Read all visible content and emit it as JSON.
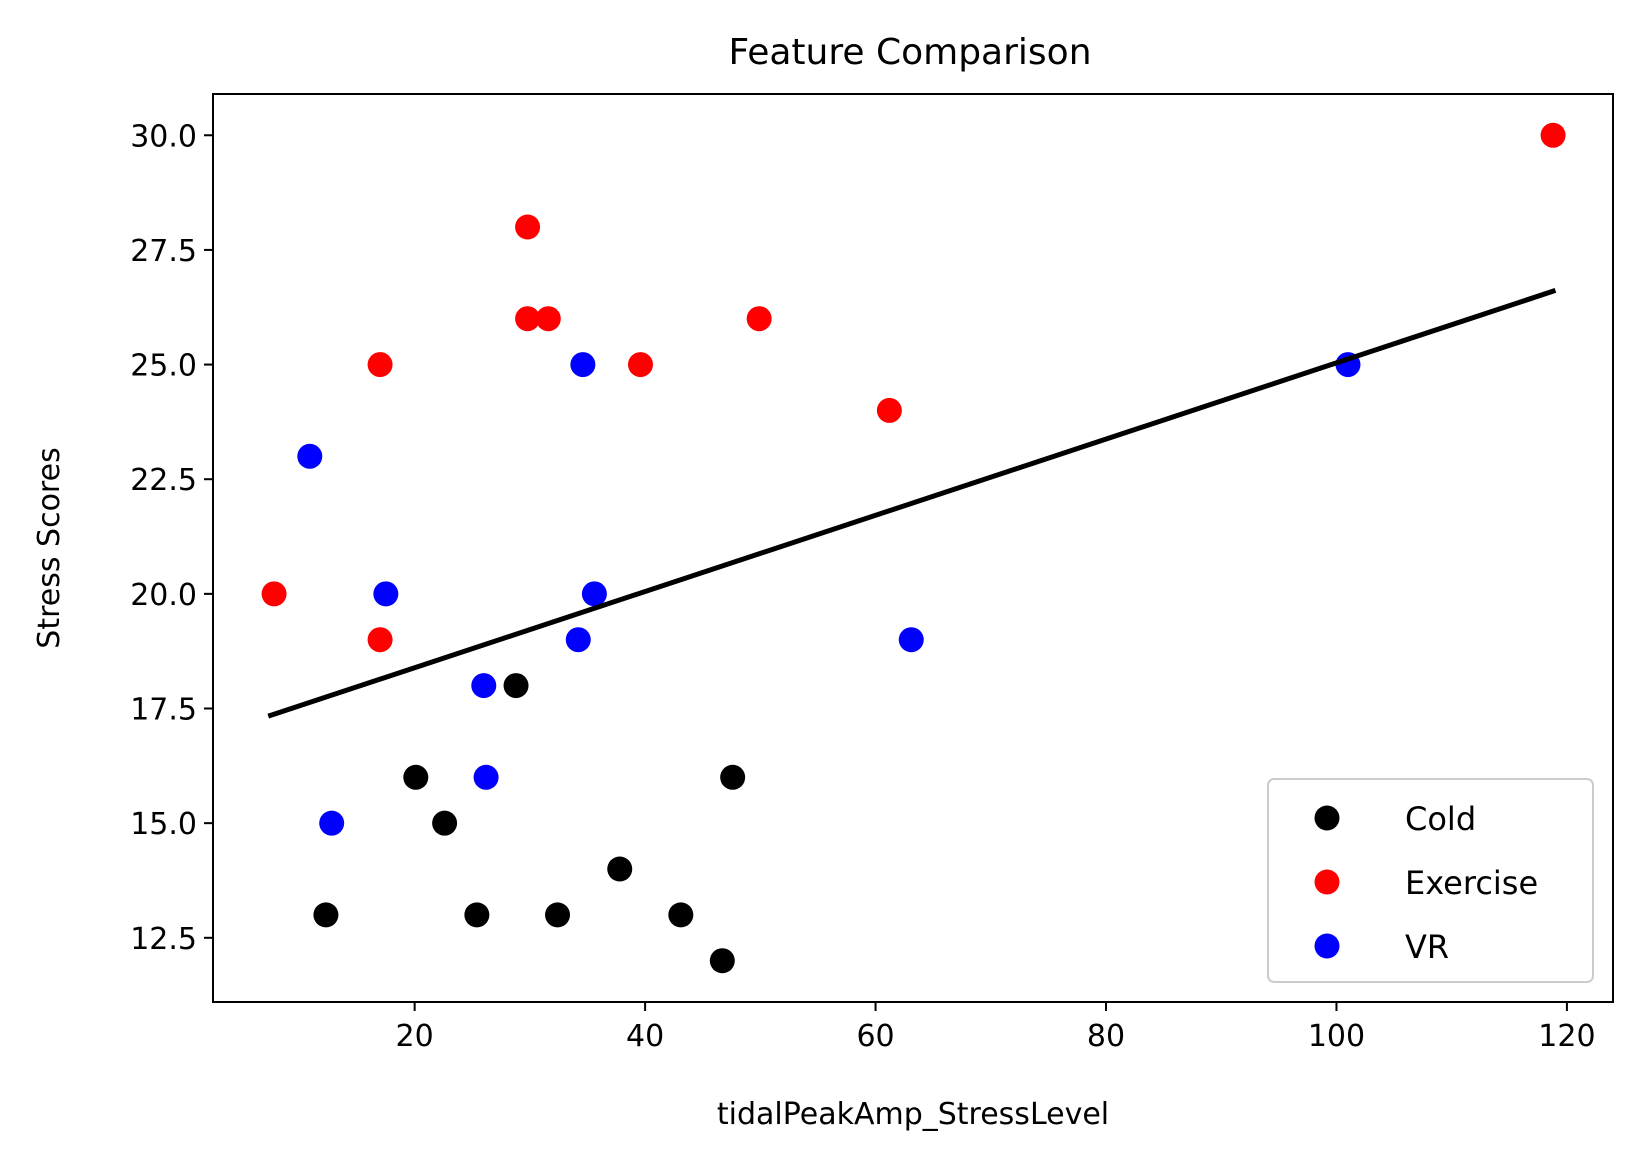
{
  "chart_data": {
    "type": "scatter",
    "title": "Feature Comparison",
    "xlabel": "tidalPeakAmp_StressLevel",
    "ylabel": "Stress Scores",
    "xlim": [
      2.5,
      124
    ],
    "ylim": [
      11.1,
      30.9
    ],
    "xticks": [
      20,
      40,
      60,
      80,
      100,
      120
    ],
    "yticks": [
      12.5,
      15.0,
      17.5,
      20.0,
      22.5,
      25.0,
      27.5,
      30.0
    ],
    "xtick_labels": [
      "20",
      "40",
      "60",
      "80",
      "100",
      "120"
    ],
    "ytick_labels": [
      "12.5",
      "15.0",
      "17.5",
      "20.0",
      "22.5",
      "25.0",
      "27.5",
      "30.0"
    ],
    "legend_position": "lower-right",
    "grid": false,
    "series": [
      {
        "name": "Cold",
        "color": "#000000",
        "points": [
          {
            "x": 12.3,
            "y": 13
          },
          {
            "x": 20.1,
            "y": 16
          },
          {
            "x": 22.6,
            "y": 15
          },
          {
            "x": 25.4,
            "y": 13
          },
          {
            "x": 28.8,
            "y": 18
          },
          {
            "x": 32.4,
            "y": 13
          },
          {
            "x": 37.8,
            "y": 14
          },
          {
            "x": 43.1,
            "y": 13
          },
          {
            "x": 46.7,
            "y": 12
          },
          {
            "x": 47.6,
            "y": 16
          }
        ]
      },
      {
        "name": "Exercise",
        "color": "#ff0000",
        "points": [
          {
            "x": 7.8,
            "y": 20
          },
          {
            "x": 17.0,
            "y": 25
          },
          {
            "x": 17.0,
            "y": 19
          },
          {
            "x": 29.8,
            "y": 28
          },
          {
            "x": 29.8,
            "y": 26
          },
          {
            "x": 31.6,
            "y": 26
          },
          {
            "x": 39.6,
            "y": 25
          },
          {
            "x": 49.9,
            "y": 26
          },
          {
            "x": 61.2,
            "y": 24
          },
          {
            "x": 118.8,
            "y": 30
          }
        ]
      },
      {
        "name": "VR",
        "color": "#0000ff",
        "points": [
          {
            "x": 10.9,
            "y": 23
          },
          {
            "x": 12.8,
            "y": 15
          },
          {
            "x": 17.5,
            "y": 20
          },
          {
            "x": 26.0,
            "y": 18
          },
          {
            "x": 26.2,
            "y": 16
          },
          {
            "x": 34.2,
            "y": 19
          },
          {
            "x": 34.6,
            "y": 25
          },
          {
            "x": 35.6,
            "y": 20
          },
          {
            "x": 63.1,
            "y": 19
          },
          {
            "x": 101.0,
            "y": 25
          }
        ]
      }
    ],
    "fit_line": {
      "color": "#000000",
      "x": [
        7.5,
        118.8
      ],
      "y": [
        17.35,
        26.6
      ]
    }
  }
}
